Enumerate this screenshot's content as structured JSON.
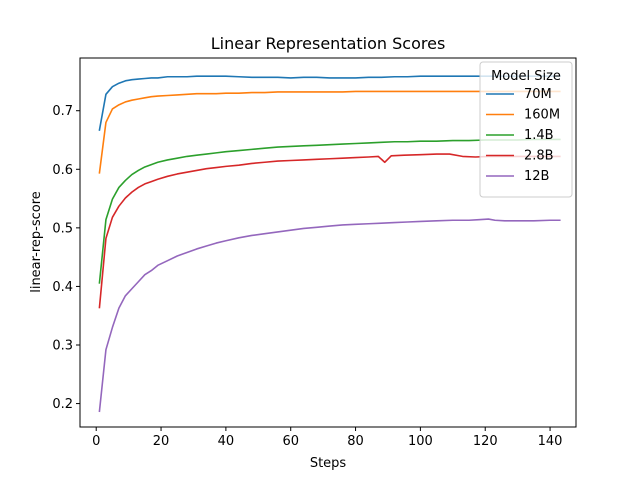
{
  "chart_data": {
    "type": "line",
    "title": "Linear Representation Scores",
    "xlabel": "Steps",
    "ylabel": "linear-rep-score",
    "xlim": [
      -5,
      148
    ],
    "ylim": [
      0.16,
      0.79
    ],
    "xticks": [
      0,
      20,
      40,
      60,
      80,
      100,
      120,
      140
    ],
    "yticks": [
      0.2,
      0.3,
      0.4,
      0.5,
      0.6,
      0.7
    ],
    "grid": false,
    "legend": {
      "title": "Model Size",
      "position": "top-right"
    },
    "series": [
      {
        "name": "70M",
        "color": "#1f77b4",
        "x": [
          1,
          3,
          5,
          7,
          9,
          11,
          13,
          15,
          17,
          19,
          22,
          25,
          28,
          31,
          34,
          37,
          40,
          44,
          48,
          52,
          56,
          60,
          64,
          68,
          72,
          76,
          80,
          84,
          88,
          92,
          96,
          100,
          105,
          110,
          115,
          120,
          125,
          130,
          135,
          140,
          143
        ],
        "y": [
          0.667,
          0.728,
          0.741,
          0.747,
          0.751,
          0.753,
          0.754,
          0.755,
          0.756,
          0.756,
          0.758,
          0.758,
          0.758,
          0.759,
          0.759,
          0.759,
          0.759,
          0.758,
          0.757,
          0.757,
          0.757,
          0.756,
          0.757,
          0.757,
          0.756,
          0.756,
          0.756,
          0.757,
          0.757,
          0.758,
          0.758,
          0.759,
          0.759,
          0.759,
          0.759,
          0.759,
          0.759,
          0.759,
          0.759,
          0.759,
          0.759
        ]
      },
      {
        "name": "160M",
        "color": "#ff7f0e",
        "x": [
          1,
          3,
          5,
          7,
          9,
          11,
          13,
          15,
          17,
          19,
          22,
          25,
          28,
          31,
          34,
          37,
          40,
          44,
          48,
          52,
          56,
          60,
          64,
          68,
          72,
          76,
          80,
          84,
          88,
          92,
          96,
          100,
          105,
          110,
          115,
          120,
          125,
          130,
          135,
          140,
          143
        ],
        "y": [
          0.594,
          0.68,
          0.703,
          0.71,
          0.715,
          0.718,
          0.72,
          0.722,
          0.724,
          0.725,
          0.726,
          0.727,
          0.728,
          0.729,
          0.729,
          0.729,
          0.73,
          0.73,
          0.731,
          0.731,
          0.732,
          0.732,
          0.732,
          0.732,
          0.732,
          0.732,
          0.733,
          0.733,
          0.733,
          0.733,
          0.733,
          0.733,
          0.733,
          0.733,
          0.733,
          0.733,
          0.733,
          0.733,
          0.733,
          0.733,
          0.733
        ]
      },
      {
        "name": "1.4B",
        "color": "#2ca02c",
        "x": [
          1,
          3,
          5,
          7,
          9,
          11,
          13,
          15,
          17,
          19,
          22,
          25,
          28,
          31,
          34,
          37,
          40,
          44,
          48,
          52,
          56,
          60,
          64,
          68,
          72,
          76,
          80,
          84,
          88,
          92,
          96,
          100,
          105,
          110,
          115,
          120,
          125,
          130,
          135,
          140,
          143
        ],
        "y": [
          0.406,
          0.514,
          0.549,
          0.569,
          0.581,
          0.591,
          0.598,
          0.604,
          0.608,
          0.612,
          0.616,
          0.619,
          0.622,
          0.624,
          0.626,
          0.628,
          0.63,
          0.632,
          0.634,
          0.636,
          0.638,
          0.639,
          0.64,
          0.641,
          0.642,
          0.643,
          0.644,
          0.645,
          0.646,
          0.647,
          0.647,
          0.648,
          0.648,
          0.649,
          0.649,
          0.65,
          0.65,
          0.65,
          0.651,
          0.651,
          0.651
        ]
      },
      {
        "name": "2.8B",
        "color": "#d62728",
        "x": [
          1,
          3,
          5,
          7,
          9,
          11,
          13,
          15,
          17,
          19,
          22,
          25,
          28,
          31,
          34,
          37,
          40,
          44,
          48,
          52,
          56,
          60,
          64,
          68,
          72,
          76,
          80,
          84,
          87,
          89,
          91,
          95,
          100,
          105,
          109,
          113,
          117,
          121,
          125,
          130,
          135,
          140,
          143
        ],
        "y": [
          0.364,
          0.482,
          0.518,
          0.537,
          0.551,
          0.561,
          0.569,
          0.575,
          0.579,
          0.583,
          0.588,
          0.592,
          0.595,
          0.598,
          0.601,
          0.603,
          0.605,
          0.607,
          0.61,
          0.612,
          0.614,
          0.615,
          0.616,
          0.617,
          0.618,
          0.619,
          0.62,
          0.621,
          0.622,
          0.612,
          0.623,
          0.624,
          0.625,
          0.626,
          0.626,
          0.622,
          0.621,
          0.622,
          0.622,
          0.622,
          0.622,
          0.622,
          0.622
        ]
      },
      {
        "name": "12B",
        "color": "#9467bd",
        "x": [
          1,
          3,
          5,
          7,
          9,
          11,
          13,
          15,
          17,
          19,
          22,
          25,
          28,
          31,
          34,
          37,
          40,
          44,
          48,
          52,
          56,
          60,
          64,
          68,
          72,
          76,
          80,
          84,
          88,
          92,
          96,
          100,
          105,
          110,
          115,
          118,
          121,
          123,
          126,
          130,
          135,
          140,
          143
        ],
        "y": [
          0.187,
          0.292,
          0.33,
          0.363,
          0.384,
          0.396,
          0.408,
          0.42,
          0.427,
          0.436,
          0.444,
          0.452,
          0.458,
          0.464,
          0.469,
          0.474,
          0.478,
          0.483,
          0.487,
          0.49,
          0.493,
          0.496,
          0.499,
          0.501,
          0.503,
          0.505,
          0.506,
          0.507,
          0.508,
          0.509,
          0.51,
          0.511,
          0.512,
          0.513,
          0.513,
          0.514,
          0.515,
          0.513,
          0.512,
          0.512,
          0.512,
          0.513,
          0.513
        ]
      }
    ]
  }
}
